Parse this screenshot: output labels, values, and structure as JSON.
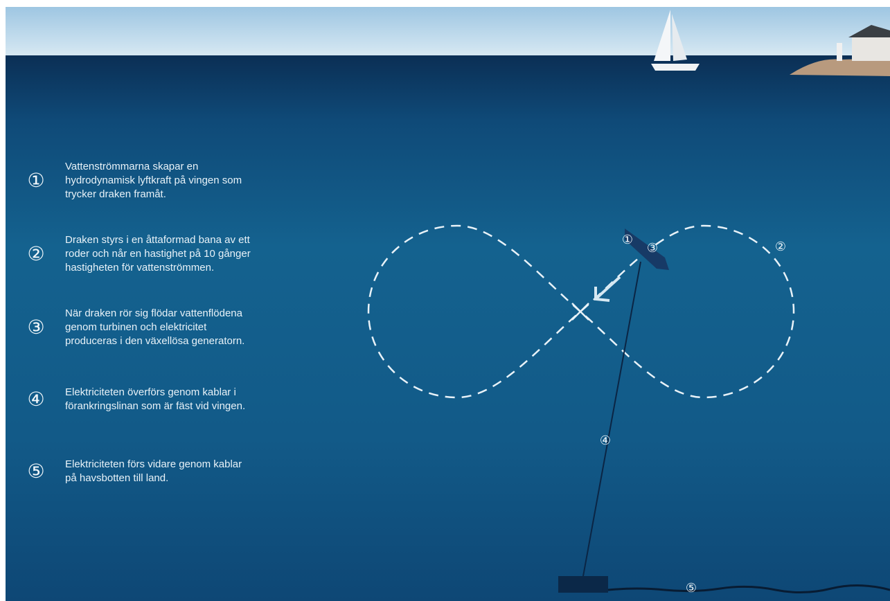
{
  "steps": [
    {
      "number": "①",
      "lines": [
        "Vattenströmmarna skapar en",
        "hydrodynamisk lyftkraft på vingen som",
        "trycker draken framåt."
      ]
    },
    {
      "number": "②",
      "lines": [
        "Draken styrs i en åttaformad bana av ett",
        "roder och når en hastighet på 10 gånger",
        "hastigheten för vattenströmmen."
      ]
    },
    {
      "number": "③",
      "lines": [
        "När draken rör sig flödar vattenflödena",
        "genom turbinen och elektricitet",
        "produceras i den växellösa generatorn."
      ]
    },
    {
      "number": "④",
      "lines": [
        "Elektriciteten överförs genom kablar i",
        "förankringslinan som är fäst vid vingen."
      ]
    },
    {
      "number": "⑤",
      "lines": [
        "Elektriciteten förs vidare genom kablar",
        "på havsbotten till land."
      ]
    }
  ],
  "diagram": {
    "labels": [
      "①",
      "③",
      "②",
      "④",
      "⑤"
    ]
  }
}
